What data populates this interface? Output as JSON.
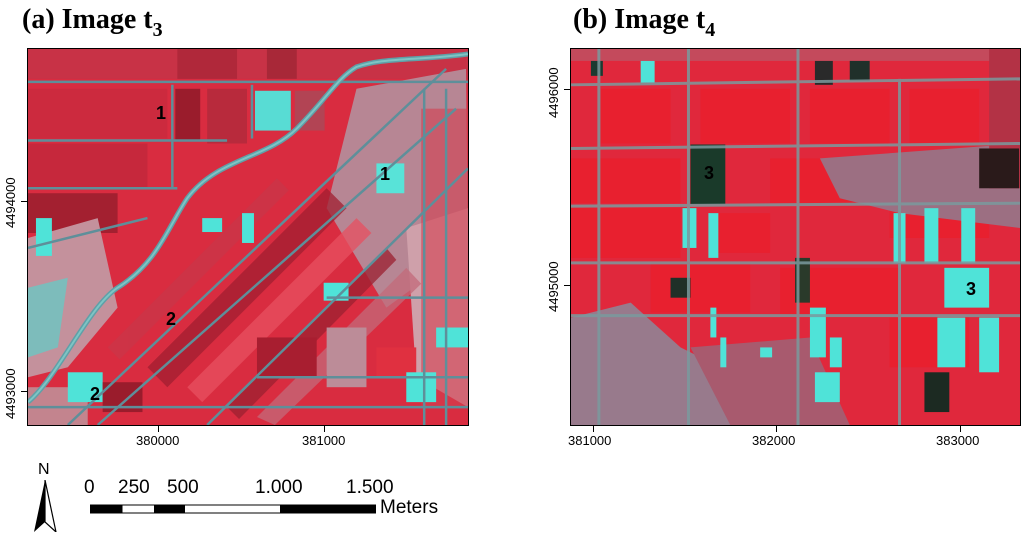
{
  "panel_a": {
    "title_prefix": "(a) Image t",
    "title_sub": "3",
    "x_ticks": [
      "380000",
      "381000"
    ],
    "y_ticks": [
      "4494000",
      "4493000"
    ],
    "labels": [
      "1",
      "1",
      "2",
      "2"
    ]
  },
  "panel_b": {
    "title_prefix": "(b) Image t",
    "title_sub": "4",
    "x_ticks": [
      "381000",
      "382000",
      "383000"
    ],
    "y_ticks": [
      "4496000",
      "4495000"
    ],
    "labels": [
      "3",
      "3"
    ]
  },
  "scale_bar": {
    "values": [
      "0",
      "250",
      "500",
      "1.000",
      "1.500"
    ],
    "unit": "Meters"
  },
  "north_arrow": {
    "letter": "N"
  },
  "colors": {
    "vegetation_red": "#e0283c",
    "dark_red": "#a01a2a",
    "cyan": "#4fe3d8",
    "canal": "#5e8f9a",
    "grey_field": "#9c7a8a"
  }
}
